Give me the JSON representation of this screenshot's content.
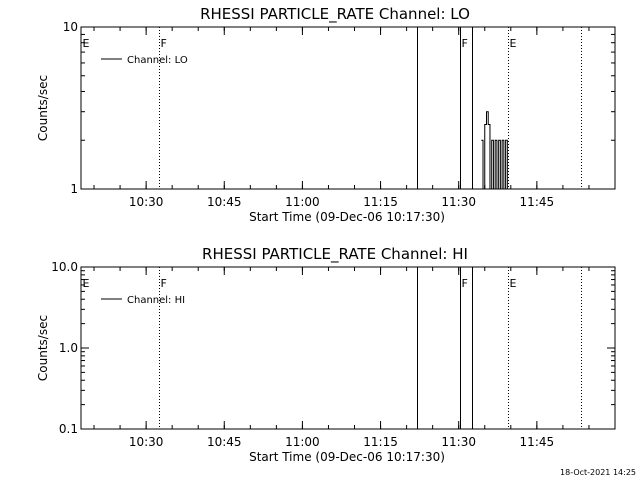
{
  "chart_data": [
    {
      "type": "line",
      "title": "RHESSI PARTICLE_RATE Channel: LO",
      "xlabel": "Start Time (09-Dec-06 10:17:30)",
      "ylabel": "Counts/sec",
      "yscale": "log",
      "ylim": [
        1,
        10
      ],
      "xlim": [
        "10:17:30",
        "12:00:00"
      ],
      "xticks": [
        "10:30",
        "10:45",
        "11:00",
        "11:15",
        "11:30",
        "11:45"
      ],
      "yticks": [
        "1",
        "10"
      ],
      "legend": {
        "placement": "top-left",
        "entries": [
          "Channel: LO"
        ]
      },
      "events": [
        {
          "label": "E",
          "time": "10:17:30",
          "style": "none"
        },
        {
          "label": "F",
          "time": "10:32:30",
          "style": "dotted"
        },
        {
          "label": "",
          "time": "11:22:00",
          "style": "solid"
        },
        {
          "label": "F",
          "time": "11:30:10",
          "style": "solid"
        },
        {
          "label": "",
          "time": "11:32:30",
          "style": "solid"
        },
        {
          "label": "E",
          "time": "11:39:30",
          "style": "dotted"
        },
        {
          "label": "",
          "time": "11:53:30",
          "style": "dotted"
        }
      ],
      "series": [
        {
          "name": "Channel: LO",
          "x": [
            "11:34:20",
            "11:34:40",
            "11:35:00",
            "11:35:20",
            "11:35:40",
            "11:36:00",
            "11:36:20",
            "11:36:40",
            "11:37:00",
            "11:37:20",
            "11:37:40",
            "11:38:00",
            "11:38:20",
            "11:38:40",
            "11:39:00",
            "11:39:20"
          ],
          "y": [
            2,
            1,
            2.5,
            3,
            2.5,
            1,
            2,
            1,
            2,
            1,
            2,
            1,
            2,
            1,
            2,
            1
          ]
        }
      ]
    },
    {
      "type": "line",
      "title": "RHESSI PARTICLE_RATE Channel: HI",
      "xlabel": "Start Time (09-Dec-06 10:17:30)",
      "ylabel": "Counts/sec",
      "yscale": "log",
      "ylim": [
        0.1,
        10
      ],
      "xlim": [
        "10:17:30",
        "12:00:00"
      ],
      "xticks": [
        "10:30",
        "10:45",
        "11:00",
        "11:15",
        "11:30",
        "11:45"
      ],
      "yticks": [
        "0.1",
        "1.0",
        "10.0"
      ],
      "legend": {
        "placement": "top-left",
        "entries": [
          "Channel: HI"
        ]
      },
      "events": [
        {
          "label": "E",
          "time": "10:17:30",
          "style": "none"
        },
        {
          "label": "F",
          "time": "10:32:30",
          "style": "dotted"
        },
        {
          "label": "",
          "time": "11:22:00",
          "style": "solid"
        },
        {
          "label": "F",
          "time": "11:30:10",
          "style": "solid"
        },
        {
          "label": "",
          "time": "11:32:30",
          "style": "solid"
        },
        {
          "label": "E",
          "time": "11:39:30",
          "style": "dotted"
        },
        {
          "label": "",
          "time": "11:53:30",
          "style": "dotted"
        }
      ],
      "series": [
        {
          "name": "Channel: HI",
          "x": [],
          "y": []
        }
      ]
    }
  ],
  "footer": {
    "timestamp": "18-Oct-2021 14:25"
  }
}
